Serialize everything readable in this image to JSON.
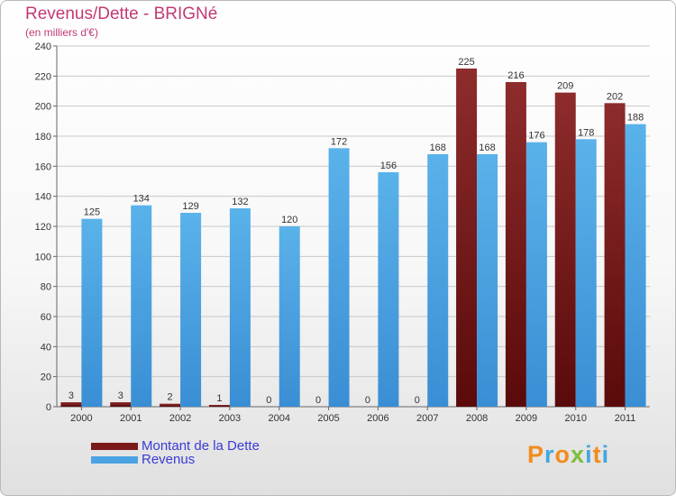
{
  "header": {
    "title": "Revenus/Dette - BRIGNé",
    "subtitle": "(en milliers d'€)"
  },
  "chart_data": {
    "type": "bar",
    "categories": [
      "2000",
      "2001",
      "2002",
      "2003",
      "2004",
      "2005",
      "2006",
      "2007",
      "2008",
      "2009",
      "2010",
      "2011"
    ],
    "series": [
      {
        "name": "Montant de la Dette",
        "values": [
          3,
          3,
          2,
          1,
          0,
          0,
          0,
          0,
          225,
          216,
          209,
          202
        ],
        "color": "#7a1a1a"
      },
      {
        "name": "Revenus",
        "values": [
          125,
          134,
          129,
          132,
          120,
          172,
          156,
          168,
          168,
          176,
          178,
          188
        ],
        "color": "#4ba3e3"
      }
    ],
    "ylim": [
      0,
      240
    ],
    "yticks": [
      0,
      20,
      40,
      60,
      80,
      100,
      120,
      140,
      160,
      180,
      200,
      220,
      240
    ],
    "xlabel": "",
    "ylabel": "",
    "grid": true,
    "legend_position": "bottom-left"
  },
  "legend": [
    {
      "label": "Montant de la Dette",
      "color": "#7a1a1a"
    },
    {
      "label": "Revenus",
      "color": "#4ba3e3"
    }
  ],
  "logo": {
    "text": "Proxiti",
    "letters": [
      "P",
      "r",
      "o",
      "x",
      "i",
      "t",
      "i"
    ],
    "colors": [
      "#f28c1e",
      "#45a7de",
      "#f28c1e",
      "#7cbf3a",
      "#45a7de",
      "#f28c1e",
      "#45a7de"
    ]
  }
}
